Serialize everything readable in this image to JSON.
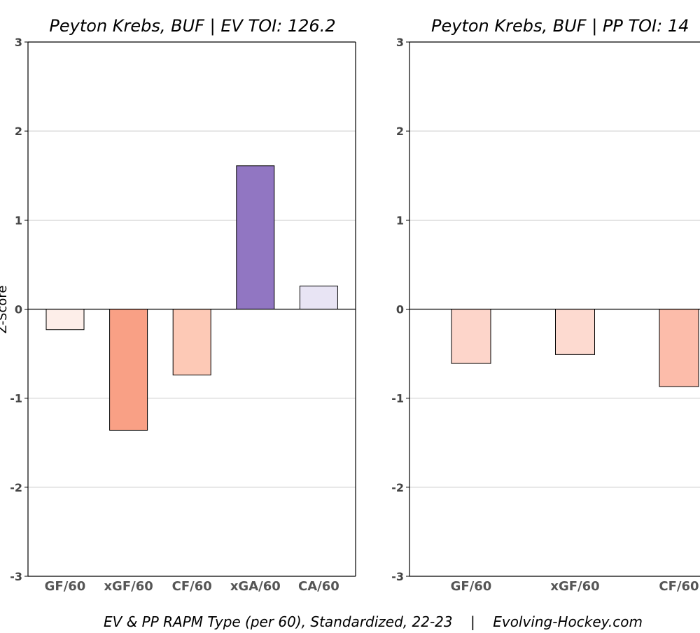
{
  "caption": "EV & PP RAPM Type (per 60), Standardized, 22-23    |    Evolving-Hockey.com",
  "ylabel": "Z-Score",
  "chart_data": [
    {
      "type": "bar",
      "title": "Peyton Krebs, BUF  |  EV TOI: 126.2",
      "categories": [
        "GF/60",
        "xGF/60",
        "CF/60",
        "xGA/60",
        "CA/60"
      ],
      "values": [
        -0.23,
        -1.36,
        -0.74,
        1.61,
        0.26
      ],
      "colors": [
        "#fdeee9",
        "#f9a085",
        "#fdc9b6",
        "#9176c2",
        "#e8e4f4"
      ],
      "ylim": [
        -3,
        3
      ],
      "yticks": [
        -3,
        -2,
        -1,
        0,
        1,
        2,
        3
      ],
      "ylabel": "Z-Score",
      "grid": true
    },
    {
      "type": "bar",
      "title": "Peyton Krebs, BUF  |  PP TOI: 14",
      "categories": [
        "GF/60",
        "xGF/60",
        "CF/60"
      ],
      "values": [
        -0.61,
        -0.51,
        -0.87
      ],
      "colors": [
        "#fdd5ca",
        "#fddad0",
        "#fcbcaa"
      ],
      "ylim": [
        -3,
        3
      ],
      "yticks": [
        -3,
        -2,
        -1,
        0,
        1,
        2,
        3
      ],
      "grid": true
    }
  ]
}
